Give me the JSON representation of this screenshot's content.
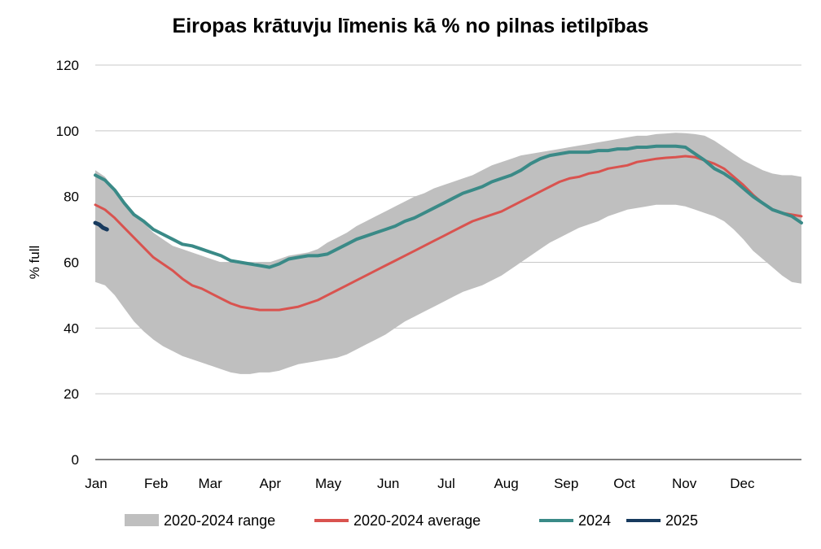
{
  "chart_data": {
    "type": "area",
    "title": "Eiropas krātuvju līmenis kā % no pilnas ietilpības",
    "xlabel": "",
    "ylabel": "% full",
    "ylim": [
      0,
      120
    ],
    "yticks": [
      0,
      20,
      40,
      60,
      80,
      100,
      120
    ],
    "xlim": [
      0,
      365
    ],
    "month_ticks": [
      {
        "label": "Jan",
        "day": 0
      },
      {
        "label": "Feb",
        "day": 31
      },
      {
        "label": "Mar",
        "day": 59
      },
      {
        "label": "Apr",
        "day": 90
      },
      {
        "label": "May",
        "day": 120
      },
      {
        "label": "Jun",
        "day": 151
      },
      {
        "label": "Jul",
        "day": 181
      },
      {
        "label": "Aug",
        "day": 212
      },
      {
        "label": "Sep",
        "day": 243
      },
      {
        "label": "Oct",
        "day": 273
      },
      {
        "label": "Nov",
        "day": 304
      },
      {
        "label": "Dec",
        "day": 334
      }
    ],
    "grid": true,
    "legend_position": "bottom",
    "range": {
      "name": "2020-2024 range",
      "color": "#bfbfbf",
      "x": [
        0,
        5,
        10,
        15,
        20,
        25,
        30,
        35,
        40,
        45,
        50,
        55,
        60,
        65,
        70,
        75,
        80,
        85,
        90,
        95,
        100,
        105,
        110,
        115,
        120,
        125,
        130,
        135,
        140,
        145,
        150,
        155,
        160,
        165,
        170,
        175,
        180,
        185,
        190,
        195,
        200,
        205,
        210,
        215,
        220,
        225,
        230,
        235,
        240,
        245,
        250,
        255,
        260,
        265,
        270,
        275,
        280,
        285,
        290,
        295,
        300,
        305,
        310,
        315,
        320,
        325,
        330,
        335,
        340,
        345,
        350,
        355,
        360,
        365
      ],
      "upper": [
        88,
        86,
        82,
        78,
        75,
        72,
        69,
        67,
        65,
        64,
        63,
        62,
        61,
        60,
        60,
        59.5,
        59.5,
        60,
        60,
        61,
        62,
        62.5,
        63,
        64,
        66,
        67.5,
        69,
        71,
        72.5,
        74,
        75.5,
        77,
        78.5,
        80,
        81,
        82.5,
        83.5,
        84.5,
        85.5,
        86.5,
        88,
        89.5,
        90.5,
        91.5,
        92.5,
        93,
        93.5,
        94,
        94.5,
        95,
        95.5,
        96,
        96.5,
        97,
        97.5,
        98,
        98.5,
        98.5,
        99,
        99.2,
        99.4,
        99.3,
        99,
        98.5,
        97,
        95,
        93,
        91,
        89.5,
        88,
        87,
        86.5,
        86.5,
        86
      ],
      "lower": [
        54,
        53,
        50,
        46,
        42,
        39,
        36.5,
        34.5,
        33,
        31.5,
        30.5,
        29.5,
        28.5,
        27.5,
        26.5,
        26,
        26,
        26.5,
        26.5,
        27,
        28,
        29,
        29.5,
        30,
        30.5,
        31,
        32,
        33.5,
        35,
        36.5,
        38,
        40,
        42,
        43.5,
        45,
        46.5,
        48,
        49.5,
        51,
        52,
        53,
        54.5,
        56,
        58,
        60,
        62,
        64,
        66,
        67.5,
        69,
        70.5,
        71.5,
        72.5,
        74,
        75,
        76,
        76.5,
        77,
        77.5,
        77.5,
        77.5,
        77,
        76,
        75,
        74,
        72.5,
        70,
        67,
        63.5,
        61,
        58.5,
        56,
        54,
        53.5
      ]
    },
    "series": [
      {
        "name": "2020-2024 average",
        "color": "#d9534f",
        "width": 3,
        "x": [
          0,
          5,
          10,
          15,
          20,
          25,
          30,
          35,
          40,
          45,
          50,
          55,
          60,
          65,
          70,
          75,
          80,
          85,
          90,
          95,
          100,
          105,
          110,
          115,
          120,
          125,
          130,
          135,
          140,
          145,
          150,
          155,
          160,
          165,
          170,
          175,
          180,
          185,
          190,
          195,
          200,
          205,
          210,
          215,
          220,
          225,
          230,
          235,
          240,
          245,
          250,
          255,
          260,
          265,
          270,
          275,
          280,
          285,
          290,
          295,
          300,
          305,
          310,
          315,
          320,
          325,
          330,
          335,
          340,
          345,
          350,
          355,
          360,
          365
        ],
        "y": [
          77.5,
          76,
          73.5,
          70.5,
          67.5,
          64.5,
          61.5,
          59.5,
          57.5,
          55,
          53,
          52,
          50.5,
          49,
          47.5,
          46.5,
          46,
          45.5,
          45.5,
          45.5,
          46,
          46.5,
          47.5,
          48.5,
          50,
          51.5,
          53,
          54.5,
          56,
          57.5,
          59,
          60.5,
          62,
          63.5,
          65,
          66.5,
          68,
          69.5,
          71,
          72.5,
          73.5,
          74.5,
          75.5,
          77,
          78.5,
          80,
          81.5,
          83,
          84.5,
          85.5,
          86,
          87,
          87.5,
          88.5,
          89,
          89.5,
          90.5,
          91,
          91.5,
          91.8,
          92,
          92.3,
          92,
          91,
          90,
          88.5,
          86,
          83.5,
          80.5,
          78,
          76,
          75,
          74.5,
          74
        ]
      },
      {
        "name": "2024",
        "color": "#3a8a87",
        "width": 4,
        "x": [
          0,
          5,
          10,
          15,
          20,
          25,
          30,
          35,
          40,
          45,
          50,
          55,
          60,
          65,
          70,
          75,
          80,
          85,
          90,
          95,
          100,
          105,
          110,
          115,
          120,
          125,
          130,
          135,
          140,
          145,
          150,
          155,
          160,
          165,
          170,
          175,
          180,
          185,
          190,
          195,
          200,
          205,
          210,
          215,
          220,
          225,
          230,
          235,
          240,
          245,
          250,
          255,
          260,
          265,
          270,
          275,
          280,
          285,
          290,
          295,
          300,
          305,
          310,
          315,
          320,
          325,
          330,
          335,
          340,
          345,
          350,
          355,
          360,
          365
        ],
        "y": [
          86.5,
          85,
          82,
          78,
          74.5,
          72.5,
          70,
          68.5,
          67,
          65.5,
          65,
          64,
          63,
          62,
          60.5,
          60,
          59.5,
          59,
          58.5,
          59.5,
          61,
          61.5,
          62,
          62,
          62.5,
          64,
          65.5,
          67,
          68,
          69,
          70,
          71,
          72.5,
          73.5,
          75,
          76.5,
          78,
          79.5,
          81,
          82,
          83,
          84.5,
          85.5,
          86.5,
          88,
          90,
          91.5,
          92.5,
          93,
          93.5,
          93.5,
          93.5,
          94,
          94,
          94.5,
          94.5,
          95,
          95,
          95.3,
          95.3,
          95.3,
          95,
          93,
          91,
          88.5,
          87,
          85,
          82.5,
          80,
          78,
          76,
          75,
          74,
          72
        ]
      },
      {
        "name": "2025",
        "color": "#173a5e",
        "width": 5,
        "x": [
          0,
          2,
          4,
          6
        ],
        "y": [
          72,
          71.5,
          70.5,
          70
        ]
      }
    ]
  },
  "legend": [
    {
      "label": "2020-2024 range",
      "kind": "band",
      "color": "#bfbfbf"
    },
    {
      "label": "2020-2024 average",
      "kind": "line",
      "color": "#d9534f"
    },
    {
      "label": "2024",
      "kind": "line",
      "color": "#3a8a87"
    },
    {
      "label": "2025",
      "kind": "line",
      "color": "#173a5e"
    }
  ]
}
